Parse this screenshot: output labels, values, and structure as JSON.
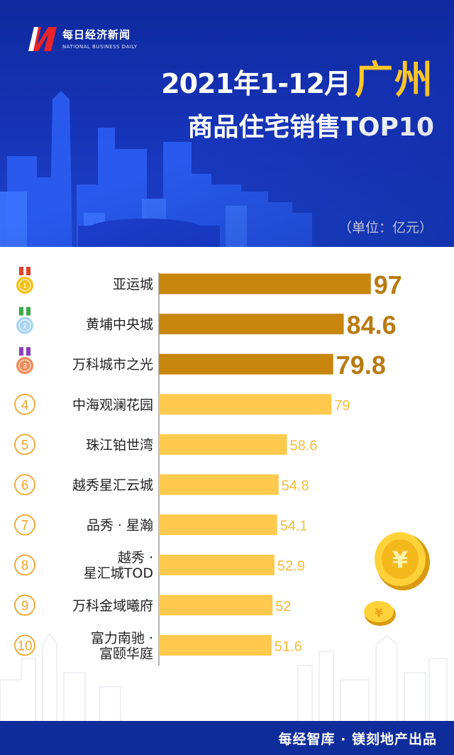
{
  "brand": {
    "name_cn": "每日经济新闻",
    "name_en": "NATIONAL BUSINESS DAILY"
  },
  "title": {
    "date": "2021年1-12月",
    "city": "广州",
    "subtitle": "商品住宅销售TOP10",
    "unit": "（单位：亿元）"
  },
  "footer": {
    "credit": "每经智库 · 镁刻地产出品"
  },
  "colors": {
    "header_blue": "#1634b8",
    "top3_bar": "#c8860f",
    "other_bar": "#ffc94d",
    "top3_value": "#b87a10",
    "other_value": "#f5bc3c",
    "rank_circle": "#f0a52a",
    "gold_medal": "#f5c21c",
    "silver_medal": "#a9d4ef",
    "bronze_medal": "#f08a55"
  },
  "chart_data": {
    "type": "bar",
    "orientation": "horizontal",
    "ranks": [
      "1",
      "2",
      "3",
      "4",
      "5",
      "6",
      "7",
      "8",
      "9",
      "10"
    ],
    "rank_markers": [
      "gold-medal-icon",
      "silver-medal-icon",
      "bronze-medal-icon",
      "4",
      "5",
      "6",
      "7",
      "8",
      "9",
      "10"
    ],
    "categories": [
      [
        "亚运城"
      ],
      [
        "黄埔中央城"
      ],
      [
        "万科城市之光"
      ],
      [
        "中海观澜花园"
      ],
      [
        "珠江铂世湾"
      ],
      [
        "越秀星汇云城"
      ],
      [
        "品秀 · 星瀚"
      ],
      [
        "越秀 ·",
        "星汇城TOD"
      ],
      [
        "万科金域曦府"
      ],
      [
        "富力南驰 ·",
        "富颐华庭"
      ]
    ],
    "values": [
      97,
      84.6,
      79.8,
      79,
      58.6,
      54.8,
      54.1,
      52.9,
      52,
      51.6
    ],
    "value_labels": [
      "97",
      "84.6",
      "79.8",
      "79",
      "58.6",
      "54.8",
      "54.1",
      "52.9",
      "52",
      "51.6"
    ],
    "unit": "亿元",
    "highlight_top": 3
  }
}
